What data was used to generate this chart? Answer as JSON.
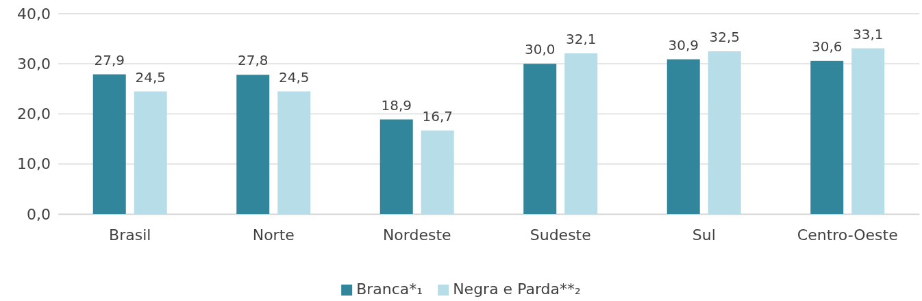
{
  "chart_data": {
    "type": "bar",
    "categories": [
      "Brasil",
      "Norte",
      "Nordeste",
      "Sudeste",
      "Sul",
      "Centro-Oeste"
    ],
    "series": [
      {
        "name": "Branca*₁",
        "color": "#31869b",
        "values": [
          27.9,
          27.8,
          18.9,
          30.0,
          30.9,
          30.6
        ],
        "value_labels": [
          "27,9",
          "27,8",
          "18,9",
          "30,0",
          "30,9",
          "30,6"
        ]
      },
      {
        "name": "Negra e Parda**₂",
        "color": "#b7dee8",
        "values": [
          24.5,
          24.5,
          16.7,
          32.1,
          32.5,
          33.1
        ],
        "value_labels": [
          "24,5",
          "24,5",
          "16,7",
          "32,1",
          "32,5",
          "33,1"
        ]
      }
    ],
    "ylim": [
      0,
      40
    ],
    "yticks": [
      {
        "value": 0,
        "label": "0,0"
      },
      {
        "value": 10,
        "label": "10,0"
      },
      {
        "value": 20,
        "label": "20,0"
      },
      {
        "value": 30,
        "label": "30,0"
      },
      {
        "value": 40,
        "label": "40,0"
      }
    ],
    "grid": "y",
    "legend": "bottom"
  }
}
